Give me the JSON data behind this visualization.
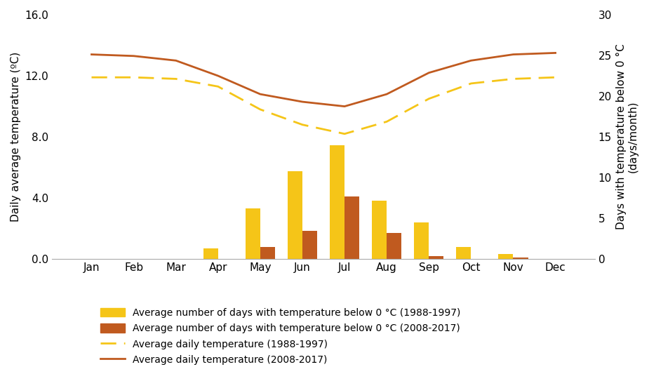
{
  "months": [
    "Jan",
    "Feb",
    "Mar",
    "Apr",
    "May",
    "Jun",
    "Jul",
    "Aug",
    "Sep",
    "Oct",
    "Nov",
    "Dec"
  ],
  "bars_1988_1997": [
    0.0,
    0.05,
    0.0,
    1.3,
    6.2,
    10.8,
    14.0,
    7.2,
    4.5,
    1.5,
    0.6,
    0.0
  ],
  "bars_2008_2017": [
    0.0,
    0.05,
    0.0,
    0.0,
    1.5,
    3.5,
    7.7,
    3.2,
    0.4,
    0.05,
    0.15,
    0.0
  ],
  "temp_1988_1997": [
    11.9,
    11.9,
    11.8,
    11.3,
    9.8,
    8.8,
    8.2,
    9.0,
    10.5,
    11.5,
    11.8,
    11.9
  ],
  "temp_2008_2017": [
    13.4,
    13.3,
    13.0,
    12.0,
    10.8,
    10.3,
    10.0,
    10.8,
    12.2,
    13.0,
    13.4,
    13.5
  ],
  "bar_color_1988_1997": "#F5C518",
  "bar_color_2008_2017": "#C05A1F",
  "line_color_1988_1997": "#F5C518",
  "line_color_2008_2017": "#C05A1F",
  "ylabel_left": "Daily average temperature (ºC)",
  "ylabel_right": "Days with temperature below 0 °C\n(days/month)",
  "ylim_left": [
    0.0,
    16.0
  ],
  "ylim_right": [
    0,
    30
  ],
  "yticks_left": [
    0.0,
    4.0,
    8.0,
    12.0,
    16.0
  ],
  "yticks_right": [
    0,
    5,
    10,
    15,
    20,
    25,
    30
  ],
  "ytick_labels_left": [
    "0.0",
    "4.0",
    "8.0",
    "12.0",
    "16.0"
  ],
  "ytick_labels_right": [
    "0",
    "5",
    "10",
    "15",
    "20",
    "25",
    "30"
  ],
  "legend_labels": [
    "Average number of days with temperature below 0 °C (1988-1997)",
    "Average number of days with temperature below 0 °C (2008-2017)",
    "Average daily temperature (1988-1997)",
    "Average daily temperature (2008-2017)"
  ],
  "background_color": "#ffffff",
  "bar_width": 0.35
}
